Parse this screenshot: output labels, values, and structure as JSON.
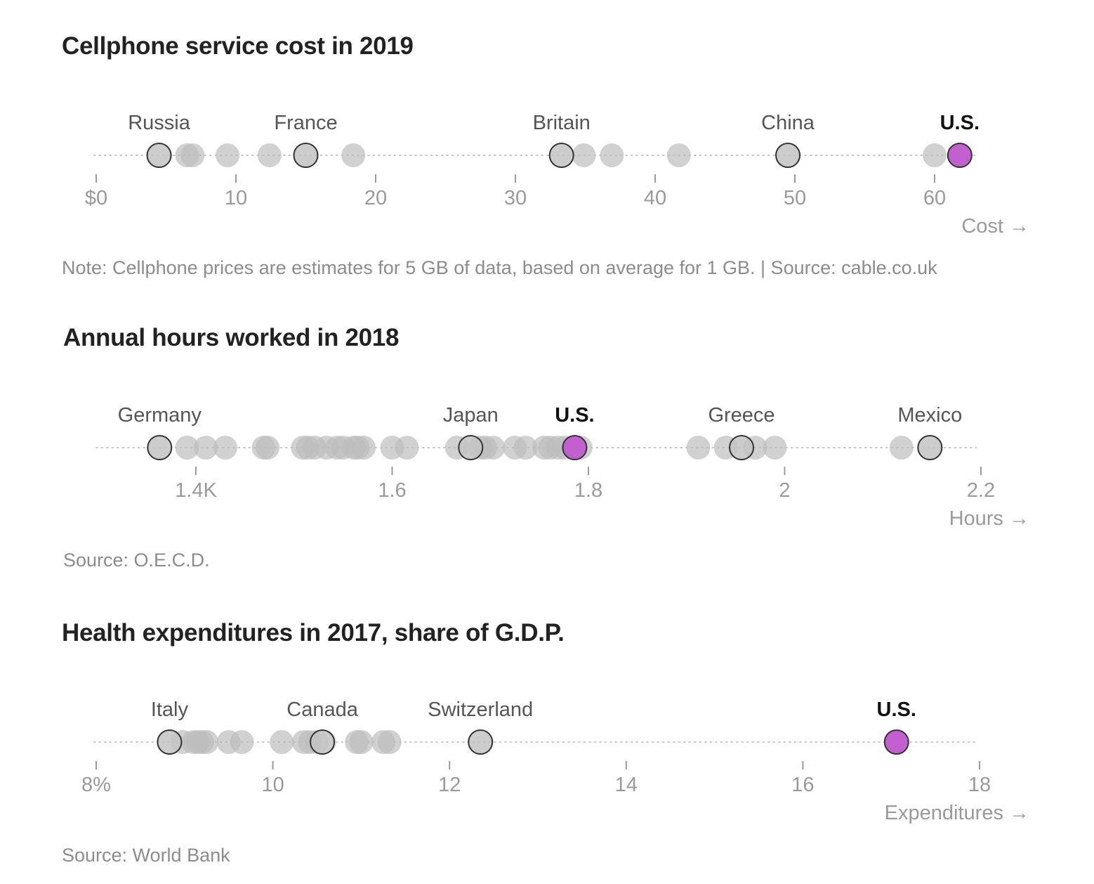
{
  "chart_data": [
    {
      "type": "scatter",
      "title": "Cellphone service cost in 2019",
      "xlabel": "Cost →",
      "xlim": [
        0,
        65
      ],
      "ticks": [
        0,
        10,
        20,
        30,
        40,
        50,
        60
      ],
      "tick_labels": [
        "$0",
        "10",
        "20",
        "30",
        "40",
        "50",
        "60"
      ],
      "x": [
        4.5,
        6.5,
        6.9,
        9.4,
        12.4,
        15.0,
        18.4,
        33.3,
        34.9,
        36.9,
        41.7,
        49.5,
        60.0,
        61.8
      ],
      "highlighted": [
        {
          "label": "Russia",
          "value": 4.5
        },
        {
          "label": "France",
          "value": 15.0
        },
        {
          "label": "Britain",
          "value": 33.3
        },
        {
          "label": "China",
          "value": 49.5
        },
        {
          "label": "U.S.",
          "value": 61.8,
          "emphasis": true
        }
      ],
      "note": "Note: Cellphone prices are estimates for 5 GB of data, based on average for 1 GB. | Source: cable.co.uk"
    },
    {
      "type": "scatter",
      "title": "Annual hours worked in 2018",
      "xlabel": "Hours →",
      "xlim": [
        1.34,
        2.2
      ],
      "ticks": [
        1.4,
        1.6,
        1.8,
        2.0,
        2.2
      ],
      "tick_labels": [
        "1.4K",
        "1.6",
        "1.8",
        "2",
        "2.2"
      ],
      "x": [
        1.363,
        1.391,
        1.41,
        1.43,
        1.469,
        1.473,
        1.509,
        1.514,
        1.521,
        1.533,
        1.544,
        1.55,
        1.561,
        1.565,
        1.571,
        1.6,
        1.615,
        1.666,
        1.682,
        1.69,
        1.695,
        1.703,
        1.725,
        1.736,
        1.755,
        1.761,
        1.769,
        1.776,
        1.785,
        1.792,
        1.912,
        1.94,
        1.956,
        1.97,
        1.99,
        2.119,
        2.148
      ],
      "highlighted": [
        {
          "label": "Germany",
          "value": 1.363
        },
        {
          "label": "Japan",
          "value": 1.68
        },
        {
          "label": "U.S.",
          "value": 1.786,
          "emphasis": true
        },
        {
          "label": "Greece",
          "value": 1.956
        },
        {
          "label": "Mexico",
          "value": 2.148
        }
      ],
      "note": "Source: O.E.C.D."
    },
    {
      "type": "scatter",
      "title": "Health expenditures in 2017, share of G.D.P.",
      "xlabel": "Expenditures →",
      "xlim": [
        8,
        18
      ],
      "ticks": [
        8,
        10,
        12,
        14,
        16,
        18
      ],
      "tick_labels": [
        "8%",
        "10",
        "12",
        "14",
        "16",
        "18"
      ],
      "x": [
        8.83,
        8.98,
        9.1,
        9.15,
        9.2,
        9.25,
        9.5,
        9.65,
        10.1,
        10.35,
        10.42,
        10.5,
        10.58,
        10.95,
        11.0,
        11.25,
        11.32,
        12.35,
        17.06
      ],
      "highlighted": [
        {
          "label": "Italy",
          "value": 8.83
        },
        {
          "label": "Canada",
          "value": 10.56
        },
        {
          "label": "Switzerland",
          "value": 12.35
        },
        {
          "label": "U.S.",
          "value": 17.06,
          "emphasis": true
        }
      ],
      "note": "Source: World Bank"
    }
  ],
  "colors": {
    "dot_fill": "#bdbdbd",
    "highlight_fill": "#c8c8c8",
    "highlight_stroke": "#333333",
    "emphasis_fill": "#c260d0",
    "axis_text": "#9a9a9a",
    "label_text": "#555555",
    "emphasis_text": "#111111"
  }
}
